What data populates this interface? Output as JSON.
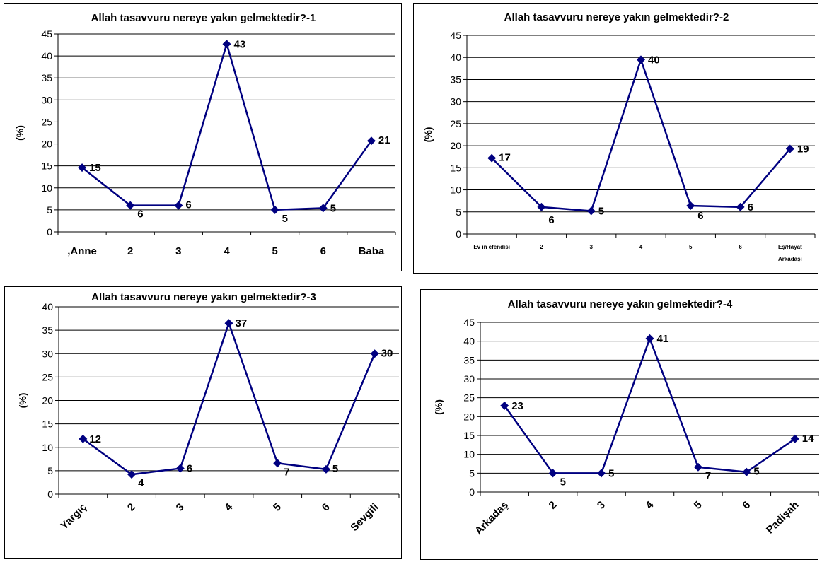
{
  "chart_data": [
    {
      "type": "line",
      "title": "Allah tasavvuru nereye yakın gelmektedir?-1",
      "ylabel": "(%)",
      "xlabel": "",
      "ylim": [
        0,
        45
      ],
      "yticks": [
        0,
        5,
        10,
        15,
        20,
        25,
        30,
        35,
        40,
        45
      ],
      "grid": true,
      "categories": [
        ",Anne",
        "2",
        "3",
        "4",
        "5",
        "6",
        "Baba"
      ],
      "values": [
        14.6,
        6,
        6,
        42.7,
        5,
        5.4,
        20.7
      ],
      "data_labels": [
        "15",
        "6",
        "6",
        "43",
        "5",
        "5",
        "21"
      ],
      "color": "#000080"
    },
    {
      "type": "line",
      "title": "Allah tasavvuru nereye yakın gelmektedir?-2",
      "ylabel": "(%)",
      "xlabel": "",
      "ylim": [
        0,
        45
      ],
      "yticks": [
        0,
        5,
        10,
        15,
        20,
        25,
        30,
        35,
        40,
        45
      ],
      "grid": true,
      "categories": [
        "Ev in efendisi",
        "2",
        "3",
        "4",
        "5",
        "6",
        "Eş/Hayat Arkadaşı"
      ],
      "values": [
        17.2,
        6.1,
        5.2,
        39.5,
        6.4,
        6.1,
        19.3
      ],
      "data_labels": [
        "17",
        "6",
        "5",
        "40",
        "6",
        "6",
        "19"
      ],
      "color": "#000080"
    },
    {
      "type": "line",
      "title": "Allah tasavvuru nereye yakın gelmektedir?-3",
      "ylabel": "(%)",
      "xlabel": "",
      "ylim": [
        0,
        40
      ],
      "yticks": [
        0,
        5,
        10,
        15,
        20,
        25,
        30,
        35,
        40
      ],
      "grid": true,
      "categories": [
        "Yargıç",
        "2",
        "3",
        "4",
        "5",
        "6",
        "Sevgili"
      ],
      "values": [
        11.8,
        4.2,
        5.5,
        36.5,
        6.6,
        5.3,
        30
      ],
      "data_labels": [
        "12",
        "4",
        "6",
        "37",
        "7",
        "5",
        "30"
      ],
      "color": "#000080"
    },
    {
      "type": "line",
      "title": "Allah tasavvuru nereye yakın gelmektedir?-4",
      "ylabel": "(%)",
      "xlabel": "",
      "ylim": [
        0,
        45
      ],
      "yticks": [
        0,
        5,
        10,
        15,
        20,
        25,
        30,
        35,
        40,
        45
      ],
      "grid": true,
      "categories": [
        "Arkadaş",
        "2",
        "3",
        "4",
        "5",
        "6",
        "Padişah"
      ],
      "values": [
        22.9,
        5,
        5,
        40.7,
        6.6,
        5.3,
        14.1
      ],
      "data_labels": [
        "23",
        "5",
        "5",
        "41",
        "7",
        "5",
        "14"
      ],
      "color": "#000080"
    }
  ]
}
